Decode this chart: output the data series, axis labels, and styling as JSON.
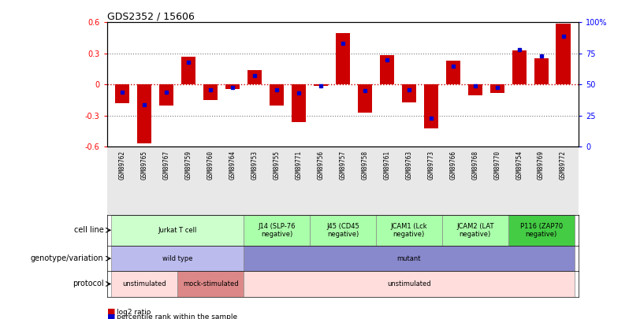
{
  "title": "GDS2352 / 15606",
  "samples": [
    "GSM89762",
    "GSM89765",
    "GSM89767",
    "GSM89759",
    "GSM89760",
    "GSM89764",
    "GSM89753",
    "GSM89755",
    "GSM89771",
    "GSM89756",
    "GSM89757",
    "GSM89758",
    "GSM89761",
    "GSM89763",
    "GSM89773",
    "GSM89766",
    "GSM89768",
    "GSM89770",
    "GSM89754",
    "GSM89769",
    "GSM89772"
  ],
  "log2_ratio": [
    -0.18,
    -0.57,
    -0.2,
    0.27,
    -0.15,
    -0.04,
    0.14,
    -0.2,
    -0.36,
    -0.01,
    0.5,
    -0.27,
    0.28,
    -0.17,
    -0.42,
    0.23,
    -0.1,
    -0.08,
    0.33,
    0.25,
    0.59
  ],
  "percentile_rank": [
    44,
    34,
    44,
    68,
    46,
    48,
    57,
    46,
    43,
    49,
    83,
    45,
    70,
    46,
    23,
    65,
    49,
    48,
    78,
    73,
    89
  ],
  "bar_color": "#cc0000",
  "dot_color": "#0000cc",
  "ylim": [
    -0.6,
    0.6
  ],
  "yticks": [
    -0.6,
    -0.3,
    0.0,
    0.3,
    0.6
  ],
  "ytick_labels": [
    "-0.6",
    "-0.3",
    "0",
    "0.3",
    "0.6"
  ],
  "y2ticks_val": [
    0,
    25,
    50,
    75,
    100
  ],
  "y2ticklabels": [
    "0",
    "25",
    "50",
    "75",
    "100%"
  ],
  "cell_line_groups": [
    {
      "label": "Jurkat T cell",
      "start": 0,
      "end": 6,
      "color": "#ccffcc"
    },
    {
      "label": "J14 (SLP-76\nnegative)",
      "start": 6,
      "end": 9,
      "color": "#aaffaa"
    },
    {
      "label": "J45 (CD45\nnegative)",
      "start": 9,
      "end": 12,
      "color": "#aaffaa"
    },
    {
      "label": "JCAM1 (Lck\nnegative)",
      "start": 12,
      "end": 15,
      "color": "#aaffaa"
    },
    {
      "label": "JCAM2 (LAT\nnegative)",
      "start": 15,
      "end": 18,
      "color": "#aaffaa"
    },
    {
      "label": "P116 (ZAP70\nnegative)",
      "start": 18,
      "end": 21,
      "color": "#44cc44"
    }
  ],
  "genotype_groups": [
    {
      "label": "wild type",
      "start": 0,
      "end": 6,
      "color": "#bbbbee"
    },
    {
      "label": "mutant",
      "start": 6,
      "end": 21,
      "color": "#8888cc"
    }
  ],
  "protocol_groups": [
    {
      "label": "unstimulated",
      "start": 0,
      "end": 3,
      "color": "#ffdddd"
    },
    {
      "label": "mock-stimulated",
      "start": 3,
      "end": 6,
      "color": "#dd8888"
    },
    {
      "label": "unstimulated",
      "start": 6,
      "end": 21,
      "color": "#ffdddd"
    }
  ],
  "row_labels": [
    "cell line",
    "genotype/variation",
    "protocol"
  ],
  "legend_red_label": "log2 ratio",
  "legend_blue_label": "percentile rank within the sample",
  "sample_label_bg": "#e8e8e8"
}
